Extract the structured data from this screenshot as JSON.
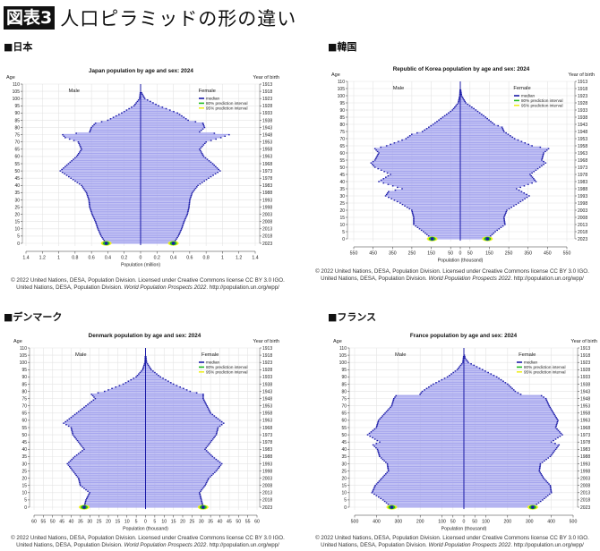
{
  "header": {
    "badge": "図表3",
    "title": "人口ピラミッドの形の違い"
  },
  "sections": [
    "■日本",
    "■韓国",
    "■デンマーク",
    "■フランス"
  ],
  "common": {
    "age_label": "Age",
    "yob_label": "Year of birth",
    "male": "Male",
    "female": "Female",
    "legend": [
      "median",
      "80% prediction interval",
      "95% prediction interval"
    ],
    "age_ticks": [
      0,
      5,
      10,
      15,
      20,
      25,
      30,
      35,
      40,
      45,
      50,
      55,
      60,
      65,
      70,
      75,
      80,
      85,
      90,
      95,
      100,
      105,
      110
    ],
    "year_ticks": [
      2023,
      2018,
      2013,
      2008,
      2003,
      1998,
      1993,
      1988,
      1983,
      1978,
      1973,
      1968,
      1963,
      1958,
      1953,
      1948,
      1943,
      1938,
      1933,
      1928,
      1923,
      1918,
      1913
    ],
    "footer1": "© 2022 United Nations, DESA, Population Division. Licensed under Creative Commons license CC BY 3.0 IGO.",
    "footer2a": "United Nations, DESA, Population Division. ",
    "footer2b": "World Population Prospects 2022",
    "footer2c": ". http://population.un.org/wpp/"
  },
  "colors": {
    "bar": "#a6a6ee",
    "median": "#1a1aa6",
    "pi80": "#22bb22",
    "pi95": "#eeee22",
    "grid": "#e4e4e4"
  },
  "chart_data": [
    {
      "type": "bar",
      "orientation": "population-pyramid",
      "title": "Japan population by age and sex: 2024",
      "xlabel": "Population (million)",
      "ylabel": "Age",
      "xlim": [
        -1.4,
        1.4
      ],
      "xtick_labels": [
        "1.4",
        "1.2",
        "1",
        "0.8",
        "0.6",
        "0.4",
        "0.2",
        "0",
        "0.2",
        "0.4",
        "0.6",
        "0.8",
        "1",
        "1.2",
        "1.4"
      ],
      "xtick_values": [
        -1.4,
        -1.2,
        -1,
        -0.8,
        -0.6,
        -0.4,
        -0.2,
        0,
        0.2,
        0.4,
        0.6,
        0.8,
        1,
        1.2,
        1.4
      ],
      "male": {
        "ages": [
          0,
          5,
          10,
          15,
          20,
          25,
          30,
          35,
          40,
          45,
          50,
          53,
          55,
          60,
          65,
          70,
          73,
          75,
          77,
          80,
          83,
          85,
          90,
          95,
          100,
          105
        ],
        "values": [
          0.42,
          0.48,
          0.52,
          0.55,
          0.59,
          0.62,
          0.63,
          0.66,
          0.72,
          0.85,
          0.98,
          0.92,
          0.88,
          0.78,
          0.72,
          0.76,
          0.92,
          0.95,
          0.62,
          0.6,
          0.55,
          0.4,
          0.23,
          0.08,
          0.01,
          0
        ]
      },
      "female": {
        "ages": [
          0,
          5,
          10,
          15,
          20,
          25,
          30,
          35,
          40,
          45,
          50,
          55,
          60,
          65,
          70,
          73,
          75,
          77,
          80,
          83,
          85,
          90,
          95,
          100,
          105
        ],
        "values": [
          0.4,
          0.46,
          0.5,
          0.53,
          0.57,
          0.59,
          0.6,
          0.63,
          0.7,
          0.83,
          0.97,
          0.88,
          0.77,
          0.72,
          0.8,
          0.98,
          1.08,
          0.72,
          0.78,
          0.76,
          0.58,
          0.45,
          0.22,
          0.05,
          0
        ]
      }
    },
    {
      "type": "bar",
      "orientation": "population-pyramid",
      "title": "Republic of Korea population by age and sex: 2024",
      "xlabel": "Population (thousand)",
      "ylabel": "Age",
      "xlim": [
        -550,
        550
      ],
      "xtick_labels": [
        "550",
        "450",
        "350",
        "250",
        "150",
        "50",
        "0",
        "50",
        "150",
        "250",
        "350",
        "450",
        "550"
      ],
      "xtick_values": [
        -550,
        -450,
        -350,
        -250,
        -150,
        -50,
        0,
        50,
        150,
        250,
        350,
        450,
        550
      ],
      "male": {
        "ages": [
          0,
          5,
          10,
          15,
          20,
          25,
          30,
          33,
          35,
          40,
          45,
          50,
          53,
          55,
          60,
          63,
          65,
          70,
          73,
          75,
          80,
          85,
          90,
          95,
          100,
          105
        ],
        "values": [
          145,
          190,
          240,
          240,
          250,
          310,
          385,
          370,
          300,
          420,
          360,
          440,
          460,
          440,
          420,
          440,
          380,
          280,
          250,
          195,
          140,
          90,
          40,
          10,
          2,
          0
        ]
      },
      "female": {
        "ages": [
          0,
          5,
          10,
          15,
          20,
          25,
          30,
          35,
          40,
          45,
          50,
          53,
          55,
          60,
          63,
          65,
          70,
          75,
          78,
          80,
          85,
          90,
          95,
          100,
          105
        ],
        "values": [
          140,
          180,
          230,
          225,
          240,
          300,
          355,
          290,
          390,
          360,
          410,
          440,
          420,
          430,
          455,
          370,
          280,
          225,
          215,
          175,
          130,
          80,
          28,
          6,
          0
        ]
      }
    },
    {
      "type": "bar",
      "orientation": "population-pyramid",
      "title": "Denmark population by age and sex: 2024",
      "xlabel": "Population (thousand)",
      "ylabel": "Age",
      "xlim": [
        -60,
        60
      ],
      "xtick_labels": [
        "60",
        "55",
        "50",
        "45",
        "40",
        "35",
        "30",
        "25",
        "20",
        "15",
        "10",
        "5",
        "0",
        "5",
        "10",
        "15",
        "20",
        "25",
        "30",
        "35",
        "40",
        "45",
        "50",
        "55",
        "60"
      ],
      "xtick_values": [
        -60,
        -55,
        -50,
        -45,
        -40,
        -35,
        -30,
        -25,
        -20,
        -15,
        -10,
        -5,
        0,
        5,
        10,
        15,
        20,
        25,
        30,
        35,
        40,
        45,
        50,
        55,
        60
      ],
      "male": {
        "ages": [
          0,
          5,
          10,
          15,
          20,
          25,
          30,
          35,
          40,
          45,
          50,
          55,
          58,
          60,
          65,
          70,
          75,
          78,
          80,
          85,
          90,
          95,
          100,
          105
        ],
        "values": [
          33,
          32,
          30,
          35,
          36,
          39,
          42,
          38,
          33,
          36,
          39,
          40,
          44,
          42,
          37,
          32,
          27,
          29,
          22,
          12,
          5,
          1.5,
          0.2,
          0
        ]
      },
      "female": {
        "ages": [
          0,
          5,
          10,
          15,
          20,
          25,
          30,
          35,
          40,
          45,
          50,
          55,
          58,
          60,
          65,
          70,
          75,
          78,
          80,
          85,
          90,
          95,
          100,
          105
        ],
        "values": [
          31,
          30,
          29,
          32,
          34,
          38,
          41,
          36,
          32,
          35,
          38,
          39,
          42,
          40,
          35,
          33,
          31,
          31,
          24,
          15,
          8,
          3,
          0.5,
          0
        ]
      }
    },
    {
      "type": "bar",
      "orientation": "population-pyramid",
      "title": "France population by age and sex: 2024",
      "xlabel": "Population (thousand)",
      "ylabel": "Age",
      "xlim": [
        -500,
        500
      ],
      "xtick_labels": [
        "500",
        "400",
        "300",
        "200",
        "100",
        "50",
        "0",
        "50",
        "100",
        "200",
        "300",
        "400",
        "500"
      ],
      "xtick_values": [
        -500,
        -400,
        -300,
        -200,
        -100,
        -50,
        0,
        50,
        100,
        200,
        300,
        400,
        500
      ],
      "male": {
        "ages": [
          0,
          5,
          10,
          15,
          20,
          25,
          30,
          35,
          40,
          43,
          45,
          50,
          55,
          60,
          65,
          70,
          75,
          77,
          78,
          80,
          85,
          90,
          95,
          100,
          105
        ],
        "values": [
          330,
          370,
          420,
          405,
          375,
          345,
          350,
          385,
          395,
          415,
          385,
          440,
          400,
          390,
          360,
          330,
          320,
          310,
          200,
          190,
          140,
          75,
          30,
          4,
          0
        ]
      },
      "female": {
        "ages": [
          0,
          5,
          10,
          15,
          20,
          25,
          30,
          35,
          40,
          43,
          45,
          50,
          55,
          60,
          65,
          70,
          75,
          77,
          78,
          80,
          85,
          90,
          95,
          100,
          103,
          106
        ],
        "values": [
          315,
          360,
          400,
          395,
          365,
          345,
          350,
          395,
          420,
          435,
          400,
          450,
          420,
          430,
          410,
          390,
          375,
          355,
          260,
          235,
          200,
          150,
          85,
          20,
          5,
          0
        ]
      }
    }
  ]
}
